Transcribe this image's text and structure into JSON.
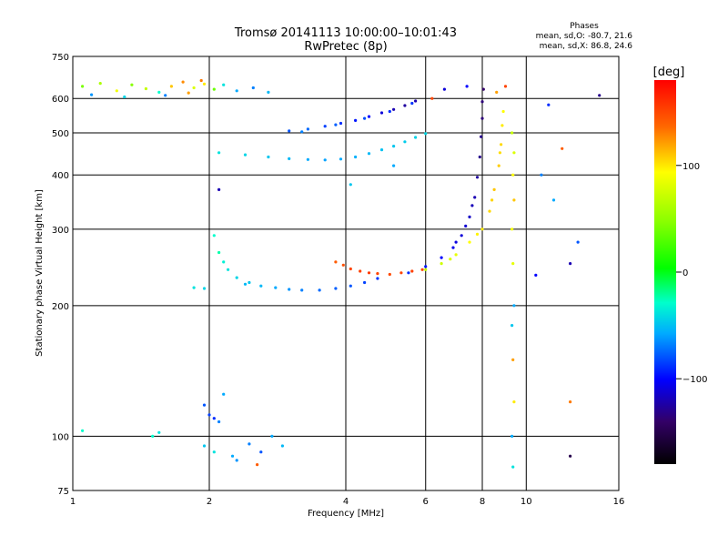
{
  "header": {
    "title": "Tromsø 20141113 10:00:00–10:01:43",
    "subtitle": "RwPretec (8p)",
    "stats_title": "Phases",
    "stats_o": "mean, sd,O: -80.7, 21.6",
    "stats_x": "mean, sd,X: 86.8, 24.6"
  },
  "colorbar": {
    "unit": "[deg]",
    "range": [
      -180,
      180
    ],
    "ticks": [
      100,
      0,
      -100
    ],
    "tick_labels": [
      "100",
      "0",
      "−100"
    ]
  },
  "chart_data": {
    "type": "scatter",
    "xlabel": "Frequency [MHz]",
    "ylabel": "Stationary phase Virtual Height [km]",
    "xscale": "log",
    "yscale": "log",
    "xlim": [
      1,
      16
    ],
    "ylim": [
      75,
      750
    ],
    "x_ticks": [
      1,
      2,
      4,
      6,
      8,
      10,
      16
    ],
    "x_tick_labels": [
      "1",
      "2",
      "4",
      "6",
      "8",
      "10",
      "16"
    ],
    "y_ticks": [
      75,
      100,
      200,
      300,
      400,
      500,
      600,
      750
    ],
    "y_tick_labels": [
      "75",
      "100",
      "200",
      "300",
      "400",
      "500",
      "600",
      "750"
    ],
    "grid": true,
    "series": [
      {
        "points": [
          [
            1.05,
            640,
            40
          ],
          [
            1.15,
            650,
            60
          ],
          [
            1.25,
            625,
            90
          ],
          [
            1.35,
            645,
            45
          ],
          [
            1.45,
            632,
            70
          ],
          [
            1.55,
            620,
            -30
          ],
          [
            1.65,
            640,
            110
          ],
          [
            1.75,
            655,
            125
          ],
          [
            1.85,
            635,
            80
          ],
          [
            1.95,
            648,
            100
          ],
          [
            2.05,
            630,
            35
          ],
          [
            2.15,
            645,
            -40
          ],
          [
            2.3,
            625,
            -60
          ],
          [
            2.5,
            635,
            -70
          ],
          [
            2.7,
            620,
            -55
          ],
          [
            1.1,
            612,
            -65
          ],
          [
            1.3,
            605,
            -45
          ],
          [
            1.6,
            610,
            -70
          ],
          [
            1.8,
            618,
            120
          ],
          [
            1.92,
            660,
            130
          ]
        ]
      },
      {
        "points": [
          [
            3.0,
            505,
            -80
          ],
          [
            3.3,
            510,
            -75
          ],
          [
            3.6,
            518,
            -85
          ],
          [
            3.9,
            526,
            -90
          ],
          [
            4.2,
            534,
            -95
          ],
          [
            4.5,
            545,
            -100
          ],
          [
            4.8,
            556,
            -110
          ],
          [
            5.1,
            566,
            -120
          ],
          [
            5.4,
            578,
            -125
          ],
          [
            5.7,
            592,
            -120
          ],
          [
            3.2,
            503,
            -70
          ],
          [
            3.8,
            522,
            -78
          ],
          [
            4.4,
            540,
            -82
          ],
          [
            5.0,
            560,
            -90
          ],
          [
            5.6,
            585,
            -88
          ]
        ]
      },
      {
        "points": [
          [
            2.1,
            450,
            -40
          ],
          [
            2.4,
            445,
            -45
          ],
          [
            2.7,
            440,
            -50
          ],
          [
            3.0,
            436,
            -55
          ],
          [
            3.3,
            434,
            -60
          ],
          [
            3.6,
            433,
            -62
          ],
          [
            3.9,
            435,
            -60
          ],
          [
            4.2,
            440,
            -58
          ],
          [
            4.5,
            448,
            -55
          ],
          [
            4.8,
            457,
            -52
          ],
          [
            5.1,
            466,
            -50
          ],
          [
            5.4,
            477,
            -48
          ],
          [
            5.7,
            488,
            -46
          ],
          [
            6.0,
            498,
            -44
          ]
        ]
      },
      {
        "points": [
          [
            2.05,
            290,
            -30
          ],
          [
            2.1,
            265,
            -25
          ],
          [
            2.15,
            252,
            -35
          ],
          [
            2.2,
            242,
            -40
          ],
          [
            2.3,
            232,
            -45
          ],
          [
            2.45,
            226,
            -50
          ],
          [
            2.6,
            222,
            -55
          ],
          [
            2.8,
            220,
            -60
          ],
          [
            3.0,
            218,
            -65
          ],
          [
            3.2,
            217,
            -70
          ],
          [
            3.5,
            217,
            -75
          ],
          [
            3.8,
            219,
            -78
          ],
          [
            4.1,
            222,
            -80
          ],
          [
            4.4,
            226,
            -85
          ],
          [
            4.7,
            231,
            -88
          ],
          [
            1.85,
            220,
            -40
          ],
          [
            1.95,
            219,
            -45
          ],
          [
            2.4,
            224,
            -55
          ]
        ]
      },
      {
        "points": [
          [
            3.8,
            252,
            140
          ],
          [
            3.95,
            248,
            145
          ],
          [
            4.1,
            243,
            150
          ],
          [
            4.3,
            240,
            152
          ],
          [
            4.5,
            238,
            155
          ],
          [
            4.7,
            237,
            150
          ],
          [
            5.0,
            236,
            148
          ],
          [
            5.3,
            238,
            150
          ],
          [
            5.6,
            240,
            152
          ],
          [
            5.9,
            242,
            150
          ]
        ]
      },
      {
        "points": [
          [
            5.5,
            238,
            -90
          ],
          [
            6.0,
            246,
            -95
          ],
          [
            6.5,
            258,
            -100
          ],
          [
            6.9,
            272,
            -105
          ],
          [
            7.2,
            290,
            -110
          ],
          [
            7.5,
            320,
            -115
          ],
          [
            7.7,
            355,
            -120
          ],
          [
            7.8,
            395,
            -125
          ],
          [
            7.9,
            440,
            -130
          ],
          [
            7.95,
            490,
            -130
          ],
          [
            8.0,
            540,
            -135
          ],
          [
            8.0,
            590,
            -135
          ],
          [
            8.05,
            630,
            -140
          ],
          [
            7.0,
            280,
            -108
          ],
          [
            7.35,
            305,
            -112
          ],
          [
            7.6,
            340,
            -118
          ]
        ]
      },
      {
        "points": [
          [
            6.0,
            242,
            70
          ],
          [
            6.5,
            250,
            75
          ],
          [
            7.0,
            262,
            85
          ],
          [
            7.5,
            280,
            95
          ],
          [
            8.0,
            300,
            100
          ],
          [
            8.3,
            330,
            105
          ],
          [
            8.5,
            370,
            110
          ],
          [
            8.7,
            420,
            108
          ],
          [
            8.8,
            470,
            105
          ],
          [
            8.85,
            520,
            100
          ],
          [
            8.9,
            560,
            95
          ],
          [
            6.8,
            256,
            80
          ],
          [
            7.8,
            292,
            98
          ],
          [
            8.4,
            350,
            106
          ],
          [
            8.75,
            450,
            104
          ]
        ]
      },
      {
        "points": [
          [
            9.3,
            500,
            70
          ],
          [
            9.4,
            450,
            80
          ],
          [
            9.35,
            400,
            95
          ],
          [
            9.4,
            350,
            110
          ],
          [
            9.3,
            300,
            90
          ],
          [
            9.35,
            250,
            85
          ],
          [
            9.4,
            200,
            -60
          ],
          [
            9.3,
            180,
            -50
          ],
          [
            9.35,
            150,
            120
          ],
          [
            9.4,
            120,
            100
          ],
          [
            9.3,
            100,
            -60
          ],
          [
            9.35,
            85,
            -40
          ]
        ]
      },
      {
        "points": [
          [
            1.95,
            118,
            -80
          ],
          [
            2.0,
            112,
            -85
          ],
          [
            2.05,
            110,
            -90
          ],
          [
            2.1,
            108,
            -70
          ],
          [
            2.15,
            125,
            -60
          ],
          [
            1.95,
            95,
            -50
          ],
          [
            2.05,
            92,
            -40
          ],
          [
            2.25,
            90,
            -60
          ],
          [
            2.45,
            96,
            -70
          ],
          [
            2.6,
            92,
            -80
          ],
          [
            2.75,
            100,
            -60
          ],
          [
            2.9,
            95,
            -55
          ],
          [
            1.5,
            100,
            -30
          ],
          [
            1.55,
            102,
            -40
          ],
          [
            1.05,
            103,
            -30
          ],
          [
            2.55,
            86,
            140
          ],
          [
            2.3,
            88,
            -65
          ]
        ]
      },
      {
        "points": [
          [
            12.5,
            250,
            -120
          ],
          [
            13.0,
            280,
            -80
          ],
          [
            11.5,
            350,
            -60
          ],
          [
            12.0,
            460,
            140
          ],
          [
            11.2,
            580,
            -90
          ],
          [
            14.5,
            610,
            -130
          ],
          [
            12.5,
            90,
            -150
          ],
          [
            12.5,
            120,
            130
          ],
          [
            10.5,
            235,
            -100
          ],
          [
            10.8,
            400,
            -70
          ],
          [
            2.1,
            370,
            -120
          ],
          [
            4.1,
            380,
            -50
          ],
          [
            5.1,
            420,
            -60
          ],
          [
            6.2,
            600,
            150
          ],
          [
            6.6,
            630,
            -110
          ],
          [
            7.4,
            640,
            -100
          ],
          [
            9.0,
            640,
            150
          ],
          [
            8.6,
            620,
            120
          ]
        ]
      }
    ]
  }
}
